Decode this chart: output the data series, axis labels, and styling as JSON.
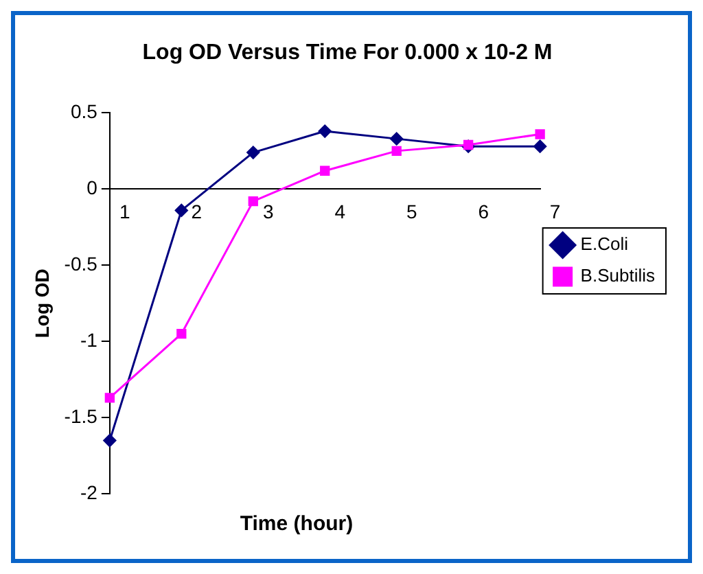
{
  "chart_data": {
    "type": "line",
    "title": "Log OD Versus Time For 0.000 x 10-2 M",
    "xlabel": "Time (hour)",
    "ylabel": "Log OD",
    "categories": [
      "1",
      "2",
      "3",
      "4",
      "5",
      "6",
      "7"
    ],
    "series": [
      {
        "name": "E.Coli",
        "color": "#000080",
        "marker": "diamond",
        "values": [
          -1.65,
          -0.14,
          0.24,
          0.38,
          0.33,
          0.28,
          0.28
        ]
      },
      {
        "name": "B.Subtilis",
        "color": "#ff00ff",
        "marker": "square",
        "values": [
          -1.37,
          -0.95,
          -0.08,
          0.12,
          0.25,
          0.29,
          0.36
        ]
      }
    ],
    "ylim": [
      -2,
      0.5
    ],
    "yticks": [
      0.5,
      0,
      -0.5,
      -1,
      -1.5,
      -2
    ],
    "grid": false,
    "legend": "right",
    "line_style": "solid"
  }
}
